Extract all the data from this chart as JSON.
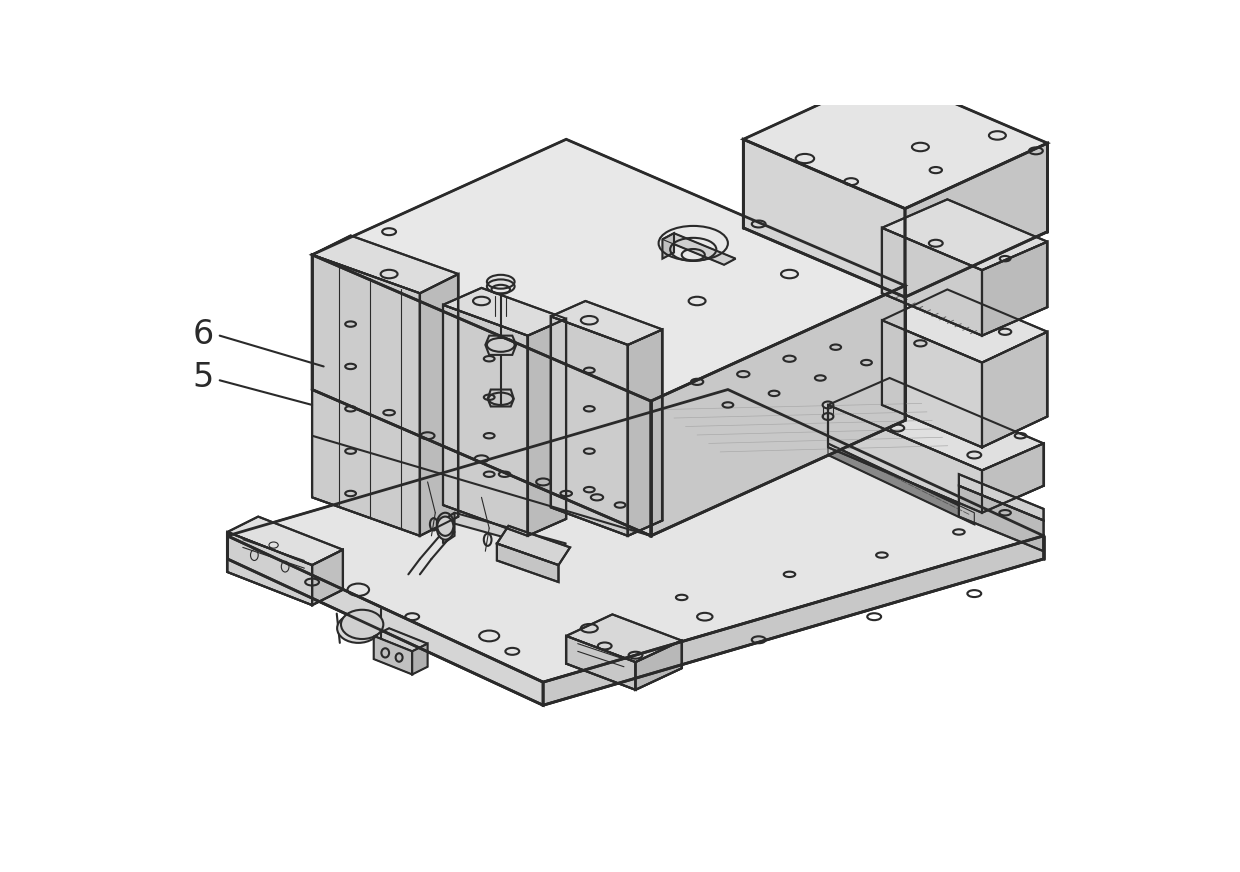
{
  "background_color": "#ffffff",
  "line_color": "#2a2a2a",
  "lw_main": 1.5,
  "lw_thin": 0.8,
  "lw_thick": 2.0,
  "label_6": "6",
  "label_5": "5",
  "label_fontsize": 24,
  "face_top": "#e8e8e8",
  "face_left": "#d0d0d0",
  "face_right": "#c0c0c0",
  "face_mid": "#d8d8d8",
  "face_dark": "#b8b8b8"
}
